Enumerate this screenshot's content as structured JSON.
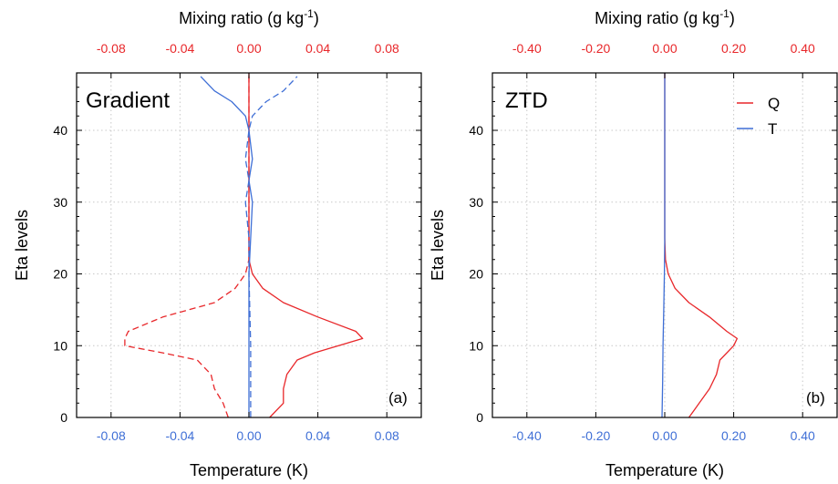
{
  "colors": {
    "q": "#e8272a",
    "t": "#3f6fd6",
    "grid": "#c8c8c8",
    "axis": "#000000"
  },
  "chart_data": [
    {
      "type": "line",
      "title": "Gradient",
      "panel_label": "(a)",
      "xlabel_top": "Mixing ratio (g kg",
      "xlabel_top_sup": "-1",
      "xlabel_top_tail": ")",
      "xlabel_bottom": "Temperature (K)",
      "ylabel": "Eta levels",
      "top_ticks": [
        "-0.08",
        "-0.04",
        "0.00",
        "0.04",
        "0.08"
      ],
      "top_tick_values": [
        -0.08,
        -0.04,
        0.0,
        0.04,
        0.08
      ],
      "top_xlim": [
        -0.1,
        0.1
      ],
      "bottom_ticks": [
        "-0.08",
        "-0.04",
        "0.00",
        "0.04",
        "0.08"
      ],
      "bottom_tick_values": [
        -0.08,
        -0.04,
        0.0,
        0.04,
        0.08
      ],
      "bottom_xlim": [
        -0.1,
        0.1
      ],
      "y_ticks": [
        "0",
        "10",
        "20",
        "30",
        "40"
      ],
      "y_tick_values": [
        0,
        10,
        20,
        30,
        40
      ],
      "ylim": [
        0,
        48
      ],
      "grid": true,
      "series": [
        {
          "axis": "top",
          "color": "q",
          "dash": false,
          "points": [
            [
              0.012,
              0
            ],
            [
              0.02,
              2
            ],
            [
              0.02,
              4
            ],
            [
              0.022,
              6
            ],
            [
              0.028,
              8
            ],
            [
              0.038,
              9
            ],
            [
              0.066,
              11
            ],
            [
              0.062,
              12
            ],
            [
              0.04,
              14
            ],
            [
              0.02,
              16
            ],
            [
              0.008,
              18
            ],
            [
              0.002,
              20
            ],
            [
              0.0,
              22
            ],
            [
              0.0,
              30
            ],
            [
              0.0,
              40
            ],
            [
              0.0,
              48
            ]
          ]
        },
        {
          "axis": "top",
          "color": "q",
          "dash": true,
          "points": [
            [
              -0.012,
              0
            ],
            [
              -0.015,
              2
            ],
            [
              -0.02,
              4
            ],
            [
              -0.022,
              6
            ],
            [
              -0.03,
              8
            ],
            [
              -0.05,
              9
            ],
            [
              -0.072,
              10
            ],
            [
              -0.072,
              11
            ],
            [
              -0.07,
              12
            ],
            [
              -0.05,
              14
            ],
            [
              -0.02,
              16
            ],
            [
              -0.008,
              18
            ],
            [
              -0.002,
              20
            ],
            [
              0.0,
              22
            ],
            [
              0.0,
              30
            ],
            [
              0.0,
              40
            ],
            [
              0.0,
              48
            ]
          ]
        },
        {
          "axis": "bottom",
          "color": "t",
          "dash": false,
          "points": [
            [
              0.0,
              0
            ],
            [
              0.0,
              10
            ],
            [
              0.0,
              20
            ],
            [
              0.001,
              25
            ],
            [
              0.002,
              30
            ],
            [
              0.0,
              33
            ],
            [
              0.002,
              36
            ],
            [
              0.0,
              40
            ],
            [
              -0.002,
              42
            ],
            [
              -0.01,
              44
            ],
            [
              -0.02,
              45.5
            ],
            [
              -0.028,
              47.5
            ]
          ]
        },
        {
          "axis": "bottom",
          "color": "t",
          "dash": true,
          "points": [
            [
              0.001,
              0
            ],
            [
              0.001,
              10
            ],
            [
              0.0,
              20
            ],
            [
              0.0,
              25
            ],
            [
              -0.002,
              30
            ],
            [
              0.0,
              33
            ],
            [
              -0.002,
              36
            ],
            [
              0.0,
              40
            ],
            [
              0.002,
              42
            ],
            [
              0.01,
              44
            ],
            [
              0.02,
              45.5
            ],
            [
              0.028,
              47.5
            ]
          ]
        }
      ]
    },
    {
      "type": "line",
      "title": "ZTD",
      "panel_label": "(b)",
      "xlabel_top": "Mixing ratio (g kg",
      "xlabel_top_sup": "-1",
      "xlabel_top_tail": ")",
      "xlabel_bottom": "Temperature (K)",
      "ylabel": "Eta levels",
      "top_ticks": [
        "-0.40",
        "-0.20",
        "0.00",
        "0.20",
        "0.40"
      ],
      "top_tick_values": [
        -0.4,
        -0.2,
        0.0,
        0.2,
        0.4
      ],
      "top_xlim": [
        -0.5,
        0.5
      ],
      "bottom_ticks": [
        "-0.40",
        "-0.20",
        "0.00",
        "0.20",
        "0.40"
      ],
      "bottom_tick_values": [
        -0.4,
        -0.2,
        0.0,
        0.2,
        0.4
      ],
      "bottom_xlim": [
        -0.5,
        0.5
      ],
      "y_ticks": [
        "0",
        "10",
        "20",
        "30",
        "40"
      ],
      "y_tick_values": [
        0,
        10,
        20,
        30,
        40
      ],
      "ylim": [
        0,
        48
      ],
      "grid": true,
      "legend": {
        "placement": "top-right",
        "entries": [
          {
            "label": "Q",
            "color": "q"
          },
          {
            "label": "T",
            "color": "t"
          }
        ]
      },
      "series": [
        {
          "axis": "top",
          "color": "q",
          "dash": false,
          "name": "Q",
          "points": [
            [
              0.07,
              0
            ],
            [
              0.1,
              2
            ],
            [
              0.13,
              4
            ],
            [
              0.15,
              6
            ],
            [
              0.16,
              8
            ],
            [
              0.2,
              10
            ],
            [
              0.21,
              11
            ],
            [
              0.18,
              12
            ],
            [
              0.13,
              14
            ],
            [
              0.07,
              16
            ],
            [
              0.03,
              18
            ],
            [
              0.01,
              20
            ],
            [
              0.002,
              22
            ],
            [
              0.0,
              25
            ],
            [
              0.0,
              30
            ],
            [
              0.0,
              40
            ],
            [
              0.0,
              48
            ]
          ]
        },
        {
          "axis": "bottom",
          "color": "t",
          "dash": false,
          "name": "T",
          "points": [
            [
              -0.008,
              0
            ],
            [
              -0.006,
              5
            ],
            [
              -0.005,
              10
            ],
            [
              -0.003,
              15
            ],
            [
              -0.001,
              20
            ],
            [
              0.0,
              25
            ],
            [
              0.0,
              30
            ],
            [
              0.0,
              40
            ],
            [
              0.0,
              48
            ]
          ]
        }
      ]
    }
  ]
}
